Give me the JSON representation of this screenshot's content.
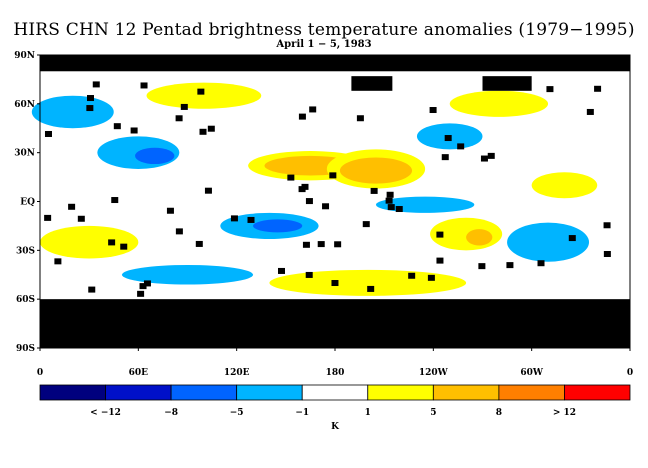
{
  "header": {
    "title": "HIRS CHN 12 Pentad brightness temperature anomalies (1979−1995)",
    "subtitle": "April 1 − 5, 1983"
  },
  "map": {
    "projection": "cylindrical-equidistant",
    "lon_range": [
      0,
      360
    ],
    "lat_range": [
      -90,
      90
    ],
    "lat_ticks": [
      "90N",
      "60N",
      "30N",
      "EQ",
      "30S",
      "60S",
      "90S"
    ],
    "lon_ticks": [
      "0",
      "60E",
      "120E",
      "180",
      "120W",
      "60W",
      "0"
    ],
    "missing_color": "#000000",
    "anomaly_regions": [
      {
        "category": "above_1",
        "lon": 165,
        "lat": 22,
        "rx": 38,
        "ry": 9
      },
      {
        "category": "above_5",
        "lon": 165,
        "lat": 22,
        "rx": 28,
        "ry": 6
      },
      {
        "category": "above_8",
        "lon": 205,
        "lat": 18,
        "rx": 16,
        "ry": 6
      },
      {
        "category": "above_12",
        "lon": 215,
        "lat": 19,
        "rx": 9,
        "ry": 3
      },
      {
        "category": "above_1",
        "lon": 205,
        "lat": 20,
        "rx": 30,
        "ry": 12
      },
      {
        "category": "above_5",
        "lon": 205,
        "lat": 19,
        "rx": 22,
        "ry": 8
      },
      {
        "category": "above_1",
        "lon": 260,
        "lat": -20,
        "rx": 22,
        "ry": 10
      },
      {
        "category": "above_5",
        "lon": 268,
        "lat": -22,
        "rx": 8,
        "ry": 5
      },
      {
        "category": "above_1",
        "lon": 30,
        "lat": -25,
        "rx": 30,
        "ry": 10
      },
      {
        "category": "above_1",
        "lon": 320,
        "lat": 10,
        "rx": 20,
        "ry": 8
      },
      {
        "category": "above_1",
        "lon": 200,
        "lat": -50,
        "rx": 60,
        "ry": 8
      },
      {
        "category": "above_1",
        "lon": 100,
        "lat": 65,
        "rx": 35,
        "ry": 8
      },
      {
        "category": "above_1",
        "lon": 280,
        "lat": 60,
        "rx": 30,
        "ry": 8
      },
      {
        "category": "below_1",
        "lon": 60,
        "lat": 30,
        "rx": 25,
        "ry": 10
      },
      {
        "category": "below_5",
        "lon": 70,
        "lat": 28,
        "rx": 12,
        "ry": 5
      },
      {
        "category": "below_1",
        "lon": 140,
        "lat": -15,
        "rx": 30,
        "ry": 8
      },
      {
        "category": "below_5",
        "lon": 145,
        "lat": -15,
        "rx": 15,
        "ry": 4
      },
      {
        "category": "below_1",
        "lon": 310,
        "lat": -25,
        "rx": 25,
        "ry": 12
      },
      {
        "category": "below_1",
        "lon": 20,
        "lat": 55,
        "rx": 25,
        "ry": 10
      },
      {
        "category": "below_1",
        "lon": 250,
        "lat": 40,
        "rx": 20,
        "ry": 8
      },
      {
        "category": "below_1",
        "lon": 90,
        "lat": -45,
        "rx": 40,
        "ry": 6
      },
      {
        "category": "below_1",
        "lon": 235,
        "lat": -2,
        "rx": 30,
        "ry": 5
      }
    ],
    "missing_regions": [
      {
        "lon": 0,
        "lat": 90,
        "lon2": 360,
        "lat2": 80
      },
      {
        "lon": 0,
        "lat": -60,
        "lon2": 360,
        "lat2": -90
      },
      {
        "lon": 190,
        "lat": 77,
        "lon2": 215,
        "lat2": 68
      },
      {
        "lon": 210,
        "lat": -5,
        "lon2": 250,
        "lat2": -1
      },
      {
        "lon": 270,
        "lat": 77,
        "lon2": 300,
        "lat2": 68
      }
    ]
  },
  "legend": {
    "colors": [
      "#00007e",
      "#0010c8",
      "#0064ff",
      "#00b4ff",
      "#ffffff",
      "#ffff00",
      "#ffbf00",
      "#ff7f00",
      "#ff0000"
    ],
    "labels": [
      "< −12",
      "−8",
      "−5",
      "−1",
      "1",
      "5",
      "8",
      "> 12"
    ],
    "unit": "K"
  }
}
